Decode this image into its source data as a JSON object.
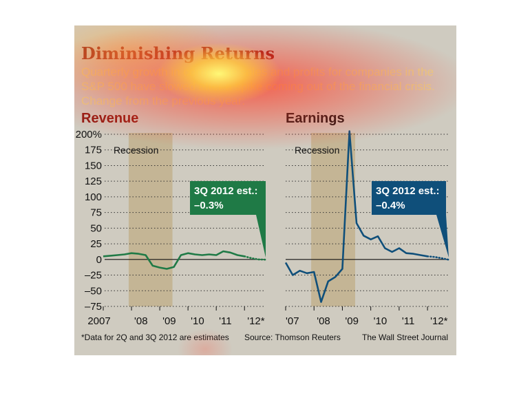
{
  "header": {
    "title": "Diminishing Returns",
    "subtitle_lines": [
      "Quarterly growth in composite sales and profits for companies in the",
      "S&P 500 have slowed after a spike coming out of the financial crisis.",
      "Change from the previous year:"
    ]
  },
  "footer": {
    "note": "*Data for 2Q and 3Q 2012 are estimates",
    "source": "Source: Thomson Reuters",
    "credit": "The Wall Street Journal"
  },
  "colors": {
    "background": "#cfcbc0",
    "recession": "#c4b595",
    "revenue": "#1f7a46",
    "earnings": "#0f4f7a",
    "title": "#8e1a12"
  },
  "chart_data": [
    {
      "type": "line",
      "title": "Revenue",
      "ylim": [
        -75,
        200
      ],
      "y_ticks": [
        -75,
        -50,
        -25,
        0,
        25,
        50,
        75,
        100,
        125,
        150,
        175,
        200
      ],
      "y_tick_labels": [
        "–75",
        "–50",
        "–25",
        "0",
        "25",
        "50",
        "75",
        "100",
        "125",
        "150",
        "175",
        "200%"
      ],
      "xlim": [
        2007.0,
        2012.75
      ],
      "x_ticks": [
        2007.0,
        2008.0,
        2009.0,
        2010.0,
        2011.0,
        2012.0
      ],
      "x_tick_labels": [
        "2007",
        "'08",
        "'09",
        "'10",
        "'11",
        "'12*"
      ],
      "grid": "horizontal-dotted",
      "recession": {
        "label": "Recession",
        "start": 2007.9,
        "end": 2009.45
      },
      "series": [
        {
          "x": [
            2007.0,
            2007.25,
            2007.5,
            2007.75,
            2008.0,
            2008.25,
            2008.5,
            2008.75,
            2009.0,
            2009.25,
            2009.5,
            2009.75,
            2010.0,
            2010.25,
            2010.5,
            2010.75,
            2011.0,
            2011.25,
            2011.5,
            2011.75,
            2012.0
          ],
          "y": [
            5,
            6,
            7,
            8,
            10,
            9,
            7,
            -10,
            -13,
            -15,
            -12,
            7,
            10,
            8,
            7,
            8,
            7,
            13,
            11,
            7,
            5
          ]
        },
        {
          "estimate": true,
          "x": [
            2012.0,
            2012.25,
            2012.5,
            2012.75
          ],
          "y": [
            5,
            2,
            0,
            -0.3
          ]
        }
      ],
      "annotation": {
        "line1": "3Q 2012 est.:",
        "line2": "–0.3%"
      }
    },
    {
      "type": "line",
      "title": "Earnings",
      "ylim": [
        -75,
        200
      ],
      "y_ticks": [
        -75,
        -50,
        -25,
        0,
        25,
        50,
        75,
        100,
        125,
        150,
        175,
        200
      ],
      "xlim": [
        2007.0,
        2012.75
      ],
      "x_ticks": [
        2007.0,
        2008.0,
        2009.0,
        2010.0,
        2011.0,
        2012.0
      ],
      "x_tick_labels": [
        "'07",
        "'08",
        "'09",
        "'10",
        "'11",
        "'12*"
      ],
      "grid": "horizontal-dotted",
      "recession": {
        "label": "Recession",
        "start": 2007.9,
        "end": 2009.45
      },
      "series": [
        {
          "x": [
            2007.0,
            2007.25,
            2007.5,
            2007.75,
            2008.0,
            2008.25,
            2008.5,
            2008.75,
            2009.0,
            2009.25,
            2009.5,
            2009.75,
            2010.0,
            2010.25,
            2010.5,
            2010.75,
            2011.0,
            2011.25,
            2011.5,
            2011.75,
            2012.0
          ],
          "y": [
            -5,
            -25,
            -18,
            -22,
            -20,
            -68,
            -35,
            -28,
            -15,
            205,
            58,
            38,
            32,
            37,
            18,
            12,
            18,
            10,
            9,
            7,
            5
          ]
        },
        {
          "estimate": true,
          "x": [
            2012.0,
            2012.25,
            2012.5,
            2012.75
          ],
          "y": [
            5,
            4,
            2,
            -0.4
          ]
        }
      ],
      "annotation": {
        "line1": "3Q 2012 est.:",
        "line2": "–0.4%"
      }
    }
  ]
}
